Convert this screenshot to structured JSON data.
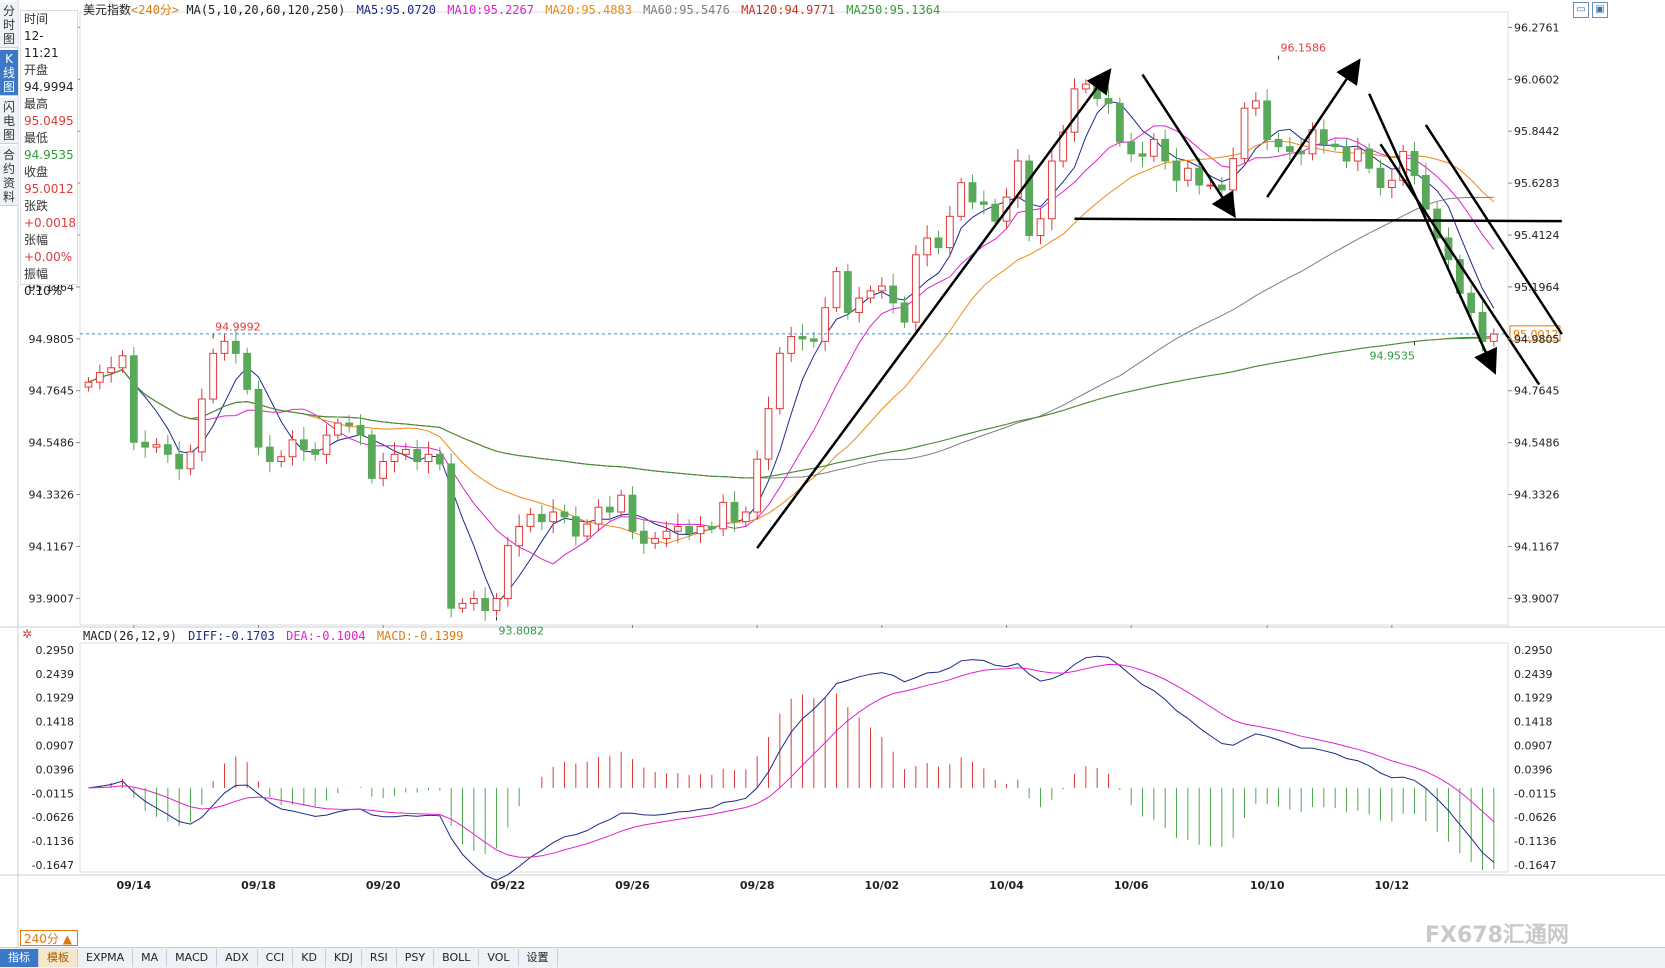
{
  "sidebar": {
    "tabs": [
      {
        "label": "分时图",
        "active": false
      },
      {
        "label": "K线图",
        "active": true
      },
      {
        "label": "闪电图",
        "active": false
      },
      {
        "label": "合约资料",
        "active": false
      }
    ]
  },
  "info": {
    "time_label": "时间",
    "time_value": "12-11:21",
    "open_label": "开盘",
    "open_value": "94.9994",
    "high_label": "最高",
    "high_value": "95.0495",
    "low_label": "最低",
    "low_value": "94.9535",
    "close_label": "收盘",
    "close_value": "95.0012",
    "change_label": "张跌",
    "change_value": "+0.0018",
    "pct_label": "张幅",
    "pct_value": "+0.00%",
    "amp_label": "振幅",
    "amp_value": "0.10%"
  },
  "header": {
    "title": "美元指数",
    "period": "<240分>",
    "ma_label": "MA(5,10,20,60,120,250)",
    "ma5": "MA5:95.0720",
    "ma10": "MA10:95.2267",
    "ma20": "MA20:95.4883",
    "ma60": "MA60:95.5476",
    "ma120": "MA120:94.9771",
    "ma250": "MA250:95.1364"
  },
  "macd_header": {
    "label": "MACD(26,12,9)",
    "diff": "DIFF:-0.1703",
    "dea": "DEA:-0.1004",
    "macd": "MACD:-0.1399"
  },
  "period_select": "240分 ▲",
  "bottom_tabs": [
    "指标",
    "模板",
    "EXPMA",
    "MA",
    "MACD",
    "ADX",
    "CCI",
    "KD",
    "KDJ",
    "RSI",
    "PSY",
    "BOLL",
    "VOL",
    "设置"
  ],
  "watermark": "FX678汇通网",
  "colors": {
    "up": "#e03a3a",
    "down": "#5aa85a",
    "ma5": "#1b2a8a",
    "ma10": "#e020d0",
    "ma20": "#f08a10",
    "ma60": "#7f7f7f",
    "ma120": "#d03020",
    "ma250": "#3a9a3a",
    "price_line": "#3a8ad8"
  },
  "chart_data": {
    "type": "candlestick",
    "title": "美元指数",
    "y_ticks": [
      "96.2761",
      "96.0602",
      "95.8442",
      "95.6283",
      "95.4124",
      "95.1964",
      "94.9805",
      "94.7645",
      "94.5486",
      "94.3326",
      "94.1167",
      "93.9007"
    ],
    "ylim": [
      93.79,
      96.34
    ],
    "x_labels": [
      "09/14",
      "09/18",
      "09/20",
      "09/22",
      "09/26",
      "09/28",
      "10/02",
      "10/04",
      "10/06",
      "10/10",
      "10/12"
    ],
    "x_label_index": [
      4,
      15,
      26,
      37,
      48,
      59,
      70,
      81,
      92,
      104,
      115
    ],
    "current_price": "95.0012",
    "annotations": [
      {
        "text": "94.9992",
        "index": 11,
        "value": 94.9992
      },
      {
        "text": "93.8082",
        "index": 36,
        "value": 93.8082
      },
      {
        "text": "96.1586",
        "index": 105,
        "value": 96.1586
      },
      {
        "text": "94.9535",
        "index": 117,
        "value": 94.9535
      }
    ],
    "closes": [
      94.8,
      94.84,
      94.86,
      94.91,
      94.55,
      94.53,
      94.54,
      94.5,
      94.44,
      94.51,
      94.73,
      94.92,
      94.97,
      94.92,
      94.77,
      94.53,
      94.47,
      94.49,
      94.56,
      94.52,
      94.5,
      94.58,
      94.63,
      94.62,
      94.58,
      94.4,
      94.47,
      94.5,
      94.52,
      94.47,
      94.5,
      94.46,
      93.86,
      93.88,
      93.9,
      93.85,
      93.9,
      94.12,
      94.2,
      94.25,
      94.22,
      94.26,
      94.24,
      94.16,
      94.21,
      94.28,
      94.26,
      94.33,
      94.18,
      94.13,
      94.15,
      94.18,
      94.2,
      94.17,
      94.2,
      94.19,
      94.3,
      94.22,
      94.26,
      94.48,
      94.69,
      94.92,
      94.99,
      94.98,
      94.97,
      95.11,
      95.26,
      95.09,
      95.15,
      95.18,
      95.2,
      95.13,
      95.05,
      95.33,
      95.4,
      95.36,
      95.49,
      95.63,
      95.55,
      95.54,
      95.47,
      95.57,
      95.72,
      95.41,
      95.48,
      95.72,
      95.84,
      96.02,
      96.04,
      95.98,
      95.96,
      95.8,
      95.75,
      95.74,
      95.81,
      95.72,
      95.64,
      95.69,
      95.62,
      95.62,
      95.6,
      95.73,
      95.94,
      95.97,
      95.81,
      95.78,
      95.76,
      95.75,
      95.85,
      95.79,
      95.78,
      95.72,
      95.77,
      95.69,
      95.61,
      95.64,
      95.76,
      95.66,
      95.52,
      95.4,
      95.31,
      95.17,
      95.09,
      94.97,
      95.0
    ],
    "macd_ticks": [
      "0.2950",
      "0.2439",
      "0.1929",
      "0.1418",
      "0.0907",
      "0.0396",
      "-0.0115",
      "-0.0626",
      "-0.1136",
      "-0.1647"
    ],
    "macd_ylim": [
      -0.18,
      0.31
    ],
    "macd_diff": "DIFF:-0.1703",
    "macd_dea": "DEA:-0.1004",
    "macd_value": "MACD:-0.1399",
    "drawings": [
      {
        "type": "trendline",
        "from": [
          59,
          94.11
        ],
        "to": [
          90,
          96.09
        ]
      },
      {
        "type": "trendline",
        "from": [
          93,
          96.08
        ],
        "to": [
          101,
          95.5
        ]
      },
      {
        "type": "trendline",
        "from": [
          104,
          95.57
        ],
        "to": [
          112,
          96.13
        ]
      },
      {
        "type": "trendline",
        "from": [
          113,
          96.0
        ],
        "to": [
          124,
          94.85
        ]
      },
      {
        "type": "trendline",
        "from": [
          114,
          95.79
        ],
        "to": [
          128,
          94.79
        ]
      },
      {
        "type": "trendline",
        "from": [
          118,
          95.87
        ],
        "to": [
          130,
          95.0
        ]
      },
      {
        "type": "horizontal",
        "from": [
          87,
          95.48
        ],
        "to": [
          130,
          95.47
        ]
      }
    ]
  }
}
